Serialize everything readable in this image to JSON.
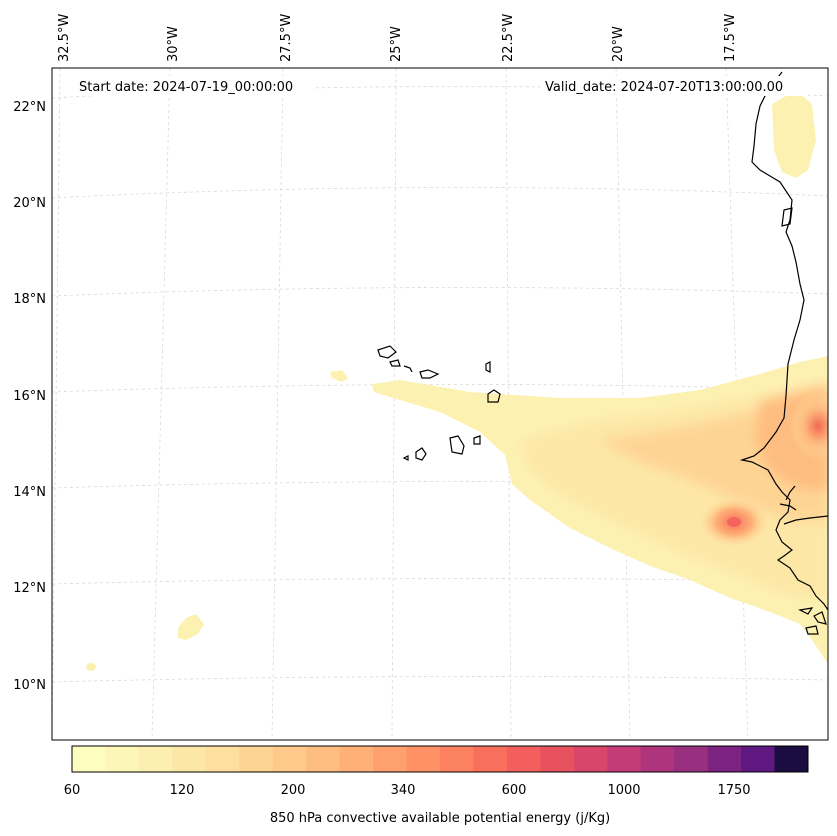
{
  "annotations": {
    "start_date": "Start date: 2024-07-19_00:00:00",
    "valid_date": "Valid_date: 2024-07-20T13:00:00.00"
  },
  "map": {
    "lon_labels": [
      "32.5°W",
      "30°W",
      "27.5°W",
      "25°W",
      "22.5°W",
      "20°W",
      "17.5°W"
    ],
    "lat_labels": [
      "22°N",
      "20°N",
      "18°N",
      "16°N",
      "14°N",
      "12°N",
      "10°N"
    ],
    "gridlines": true
  },
  "colorbar": {
    "label": "850 hPa convective available potential energy (j/Kg)",
    "tick_labels": [
      "60",
      "120",
      "200",
      "340",
      "600",
      "1000",
      "1750"
    ],
    "colors": [
      "#fcfdbf",
      "#fcf6b8",
      "#fdefb0",
      "#fde7a7",
      "#fedf9e",
      "#fed494",
      "#fec98a",
      "#febd80",
      "#feb077",
      "#fea16e",
      "#fe9266",
      "#fb8160",
      "#f8705c",
      "#f25f5c",
      "#e8525e",
      "#d8466b",
      "#c43b78",
      "#ad347d",
      "#98307f",
      "#7c2382",
      "#5f187f",
      "#1b0c41"
    ]
  }
}
